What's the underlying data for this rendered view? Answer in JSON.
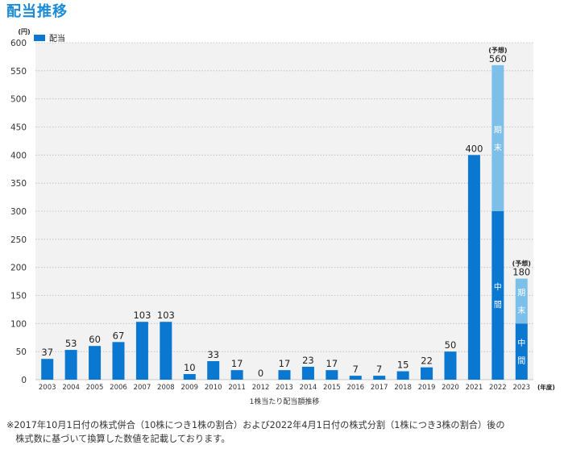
{
  "page": {
    "heading": "配当推移",
    "footnote": "※2017年10月1日付の株式併合（10株につき1株の割合）および2022年4月1日付の株式分割（1株につき3株の割合）後の\n　株式数に基づいて換算した数値を記載しております。"
  },
  "colors": {
    "accent": "#1a8bd6",
    "bar": "#0a77d0",
    "bar_final": "#7cc0ea",
    "plot_bg": "#f2f2f2",
    "grid": "#b9b9b9"
  },
  "chart_data": {
    "type": "bar",
    "y_unit": "(円)",
    "x_unit": "(年度)",
    "xlabel": "1株当たり配当額推移",
    "legend": {
      "label": "配当",
      "position": "top-left"
    },
    "ylim": [
      0,
      600
    ],
    "y_ticks": [
      0,
      50,
      100,
      150,
      200,
      250,
      300,
      350,
      400,
      450,
      500,
      550,
      600
    ],
    "grid": true,
    "categories": [
      "2003",
      "2004",
      "2005",
      "2006",
      "2007",
      "2008",
      "2009",
      "2010",
      "2011",
      "2012",
      "2013",
      "2014",
      "2015",
      "2016",
      "2017",
      "2018",
      "2019",
      "2020",
      "2021",
      "2022",
      "2023"
    ],
    "values": [
      37,
      53,
      60,
      67,
      103,
      103,
      10,
      33,
      17,
      0,
      17,
      23,
      17,
      7,
      7,
      15,
      22,
      50,
      400,
      560,
      180
    ],
    "stacked": [
      {
        "year": "2022",
        "interim": 300,
        "final": 260,
        "interim_label": "中間",
        "final_label": "期末",
        "note": "(予想)"
      },
      {
        "year": "2023",
        "interim": 100,
        "final": 80,
        "interim_label": "中間",
        "final_label": "期末",
        "note": "(予想)"
      }
    ]
  }
}
